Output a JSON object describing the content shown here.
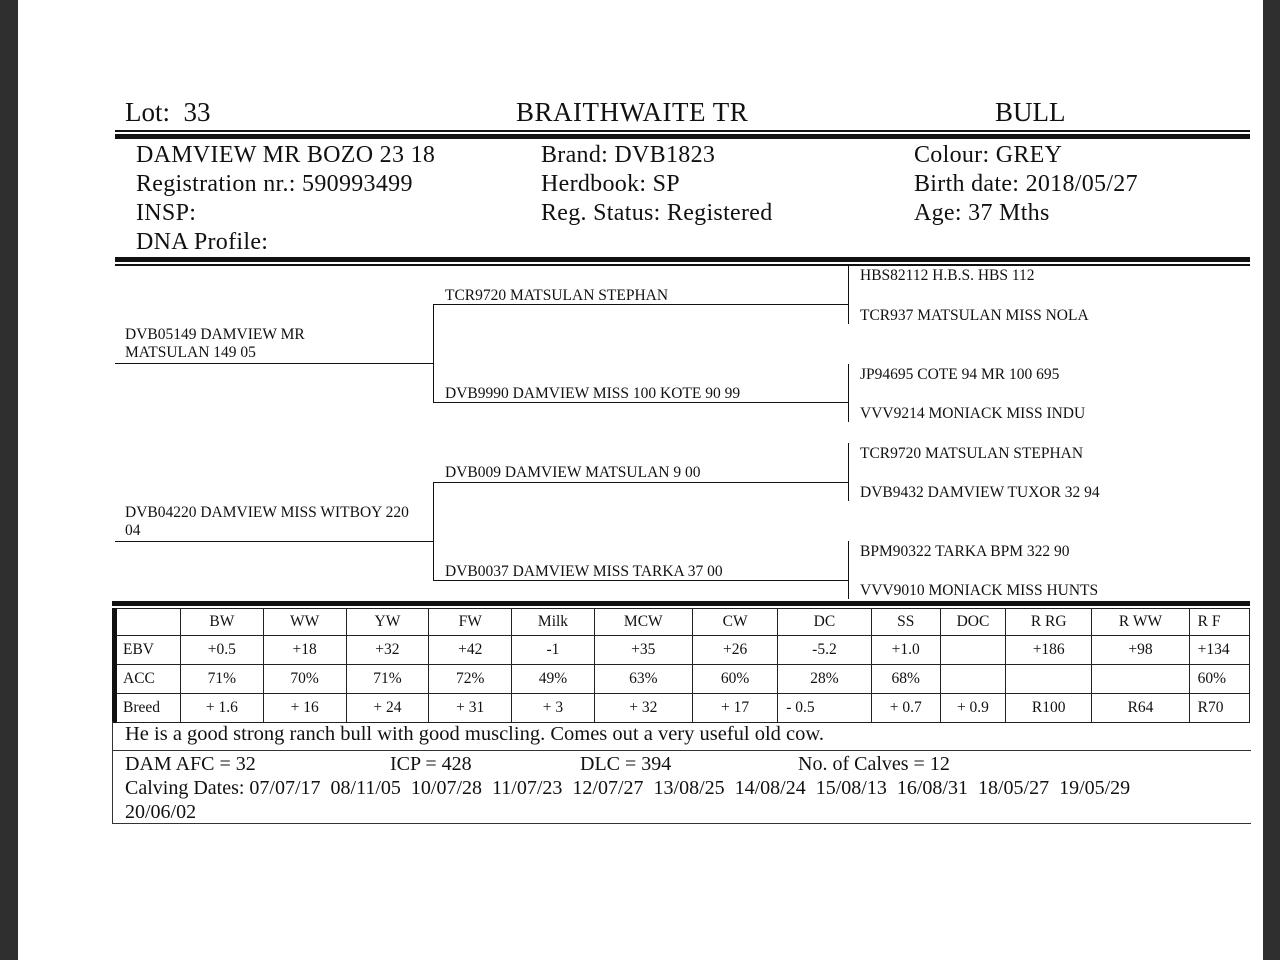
{
  "header": {
    "lot_label": "Lot:",
    "lot_number": "33",
    "breeder": "BRAITHWAITE TR",
    "sex": "BULL"
  },
  "animal": {
    "name": "DAMVIEW MR BOZO 23 18",
    "registration": "Registration nr.: 590993499",
    "insp": "INSP:",
    "dna": "DNA Profile:",
    "brand": "Brand:  DVB1823",
    "herdbook": "Herdbook: SP",
    "reg_status": "Reg. Status: Registered",
    "colour": "Colour:  GREY",
    "birth_date": "Birth date:  2018/05/27",
    "age": "Age: 37 Mths"
  },
  "pedigree": {
    "sire": "DVB05149 DAMVIEW MR MATSULAN 149 05",
    "dam": "DVB04220 DAMVIEW MISS WITBOY 220 04",
    "sire_sire": "TCR9720 MATSULAN STEPHAN",
    "sire_dam": "DVB9990 DAMVIEW MISS 100 KOTE 90 99",
    "dam_sire": "DVB009 DAMVIEW MATSULAN 9 00",
    "dam_dam": "DVB0037 DAMVIEW MISS TARKA 37 00",
    "gen3": [
      "HBS82112 H.B.S. HBS 112",
      "TCR937 MATSULAN MISS NOLA",
      "JP94695 COTE 94 MR 100 695",
      "VVV9214 MONIACK MISS INDU",
      "TCR9720 MATSULAN STEPHAN",
      "DVB9432 DAMVIEW TUXOR 32 94",
      "BPM90322 TARKA BPM 322 90",
      "VVV9010 MONIACK MISS HUNTS"
    ]
  },
  "ebv_table": {
    "columns": [
      "",
      "BW",
      "WW",
      "YW",
      "FW",
      "Milk",
      "MCW",
      "CW",
      "DC",
      "SS",
      "DOC",
      "R RG",
      "R WW",
      "R F"
    ],
    "rows": [
      [
        "EBV",
        "+0.5",
        "+18",
        "+32",
        "+42",
        "-1",
        "+35",
        "+26",
        "-5.2",
        "+1.0",
        "",
        "+186",
        "+98",
        "+134"
      ],
      [
        "ACC",
        "71%",
        "70%",
        "71%",
        "72%",
        "49%",
        "63%",
        "60%",
        "28%",
        "68%",
        "",
        "",
        "",
        "60%"
      ],
      [
        "Breed",
        "+ 1.6",
        "+ 16",
        "+ 24",
        "+ 31",
        "+ 3",
        "+ 32",
        "+ 17",
        "- 0.5",
        "+ 0.7",
        "+ 0.9",
        "R100",
        "R64",
        "R70"
      ]
    ]
  },
  "comment": "He is a good strong ranch bull with good muscling. Comes out a very useful old cow.",
  "dam_stats": {
    "afc": "DAM AFC = 32",
    "icp": "ICP = 428",
    "dlc": "DLC = 394",
    "calves": "No. of Calves = 12",
    "calving_dates": "Calving Dates: 07/07/17  08/11/05  10/07/28  11/07/23  12/07/27  13/08/25  14/08/24  15/08/13  16/08/31  18/05/27  19/05/29",
    "calving_dates_cont": "20/06/02"
  }
}
